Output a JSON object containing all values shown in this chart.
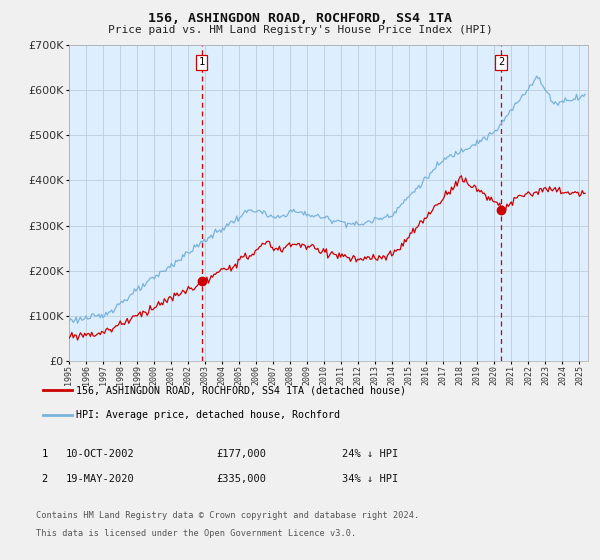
{
  "title": "156, ASHINGDON ROAD, ROCHFORD, SS4 1TA",
  "subtitle": "Price paid vs. HM Land Registry's House Price Index (HPI)",
  "hpi_label": "HPI: Average price, detached house, Rochford",
  "price_label": "156, ASHINGDON ROAD, ROCHFORD, SS4 1TA (detached house)",
  "legend1_date": "10-OCT-2002",
  "legend1_price": "£177,000",
  "legend1_hpi": "24% ↓ HPI",
  "legend2_date": "19-MAY-2020",
  "legend2_price": "£335,000",
  "legend2_hpi": "34% ↓ HPI",
  "footnote1": "Contains HM Land Registry data © Crown copyright and database right 2024.",
  "footnote2": "This data is licensed under the Open Government Licence v3.0.",
  "hpi_color": "#7ab3d9",
  "price_color": "#cc0000",
  "marker_color": "#cc0000",
  "bg_color": "#ddeeff",
  "plot_bg": "#e8f0f8",
  "grid_color": "#c8d8e8",
  "vline_color": "#cc0000",
  "marker1_x": 2002.79,
  "marker1_y": 177000,
  "marker2_x": 2020.38,
  "marker2_y": 335000,
  "ylim": [
    0,
    700000
  ],
  "xlim_start": 1995.0,
  "xlim_end": 2025.5
}
